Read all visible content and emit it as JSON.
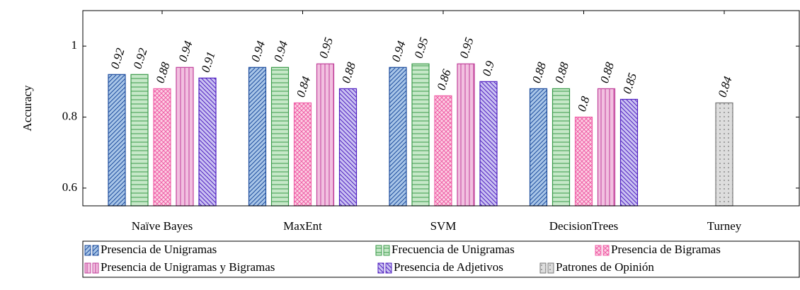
{
  "chart_data": {
    "type": "bar",
    "y_label": "Accuracy",
    "categories": [
      "Naïve Bayes",
      "MaxEnt",
      "SVM",
      "DecisionTrees",
      "Turney"
    ],
    "ylim": [
      0.55,
      1.1
    ],
    "yticks": [
      0.6,
      0.8,
      1
    ],
    "series": [
      {
        "name": "Presencia de Unigramas",
        "color": "#1f4e9e",
        "fill": "#a9c6e8",
        "pattern": "north east lines",
        "values": [
          0.92,
          0.94,
          0.94,
          0.88,
          null
        ]
      },
      {
        "name": "Frecuencia de Unigramas",
        "color": "#3a9a4a",
        "fill": "#c6e8c8",
        "pattern": "horizontal lines",
        "values": [
          0.92,
          0.94,
          0.95,
          0.88,
          null
        ]
      },
      {
        "name": "Presencia de Bigramas",
        "color": "#f060a8",
        "fill": "#fcd2e4",
        "pattern": "crosshatch",
        "values": [
          0.88,
          0.84,
          0.86,
          0.8,
          null
        ]
      },
      {
        "name": "Presencia de Unigramas y Bigramas",
        "color": "#c0409a",
        "fill": "#f2c0e0",
        "pattern": "vertical lines",
        "values": [
          0.94,
          0.95,
          0.95,
          0.88,
          null
        ]
      },
      {
        "name": "Presencia de Adjetivos",
        "color": "#5020c0",
        "fill": "#cac2f2",
        "pattern": "north west lines",
        "values": [
          0.91,
          0.88,
          0.9,
          0.85,
          null
        ]
      },
      {
        "name": "Patrones de Opinión",
        "color": "#777777",
        "fill": "#dddddd",
        "pattern": "dots",
        "values": [
          null,
          null,
          null,
          null,
          0.84
        ]
      }
    ]
  }
}
